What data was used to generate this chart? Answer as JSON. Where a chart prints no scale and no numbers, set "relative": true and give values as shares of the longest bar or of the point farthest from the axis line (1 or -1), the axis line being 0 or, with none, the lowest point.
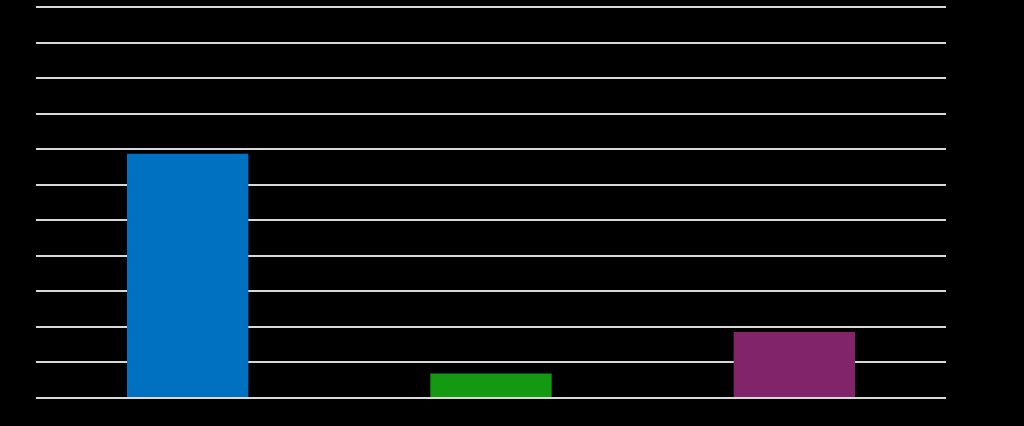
{
  "chart_data": {
    "type": "bar",
    "relative": true,
    "categories": [
      null,
      null,
      null
    ],
    "values": [
      1,
      0.1,
      0.27
    ],
    "colors": [
      "#0070c0",
      "#139a12",
      "#82246a"
    ],
    "grid": true
  }
}
